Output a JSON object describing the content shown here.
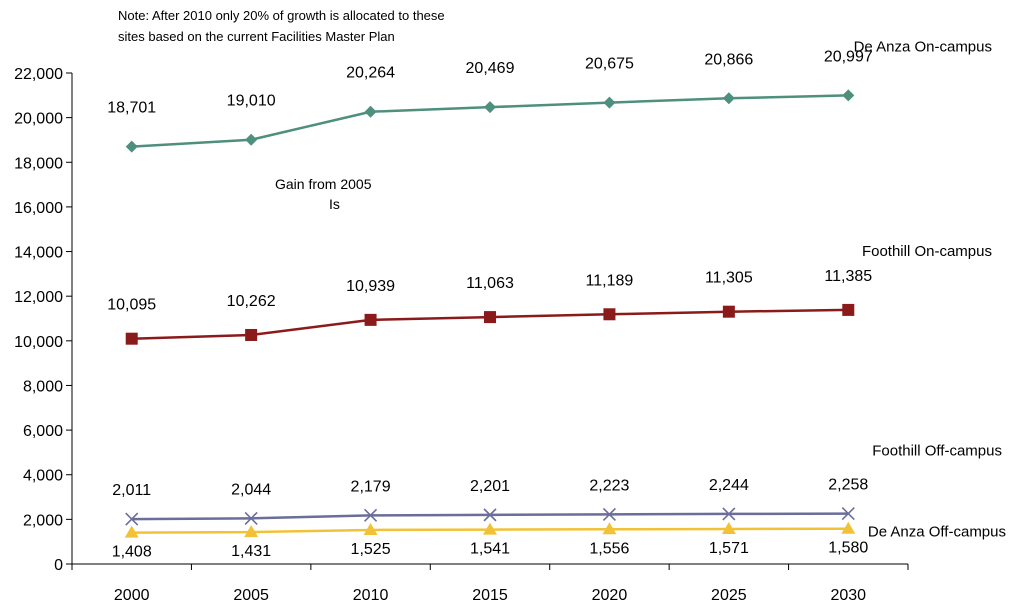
{
  "chart_data": {
    "type": "line",
    "x": [
      "2000",
      "2005",
      "2010",
      "2015",
      "2020",
      "2025",
      "2030"
    ],
    "ylim": [
      0,
      22000
    ],
    "yticks": [
      0,
      2000,
      4000,
      6000,
      8000,
      10000,
      12000,
      14000,
      16000,
      18000,
      20000,
      22000
    ],
    "ytick_labels": [
      "0",
      "2,000",
      "4,000",
      "6,000",
      "8,000",
      "10,000",
      "12,000",
      "14,000",
      "16,000",
      "18,000",
      "20,000",
      "22,000"
    ],
    "grid": false,
    "note_lines": [
      "Note: After 2010 only 20% of growth is allocated to these",
      "sites based on the current Facilities Master Plan"
    ],
    "annotation_lines": [
      "Gain from 2005",
      "Is"
    ],
    "series": [
      {
        "name": "De Anza On-campus",
        "color": "#4E8F7D",
        "marker": "diamond",
        "values": [
          18701,
          19010,
          20264,
          20469,
          20675,
          20866,
          20997
        ],
        "labels": [
          "18,701",
          "19,010",
          "20,264",
          "20,469",
          "20,675",
          "20,866",
          "20,997"
        ]
      },
      {
        "name": "Foothill On-campus",
        "color": "#8B1A1A",
        "marker": "square",
        "values": [
          10095,
          10262,
          10939,
          11063,
          11189,
          11305,
          11385
        ],
        "labels": [
          "10,095",
          "10,262",
          "10,939",
          "11,063",
          "11,189",
          "11,305",
          "11,385"
        ]
      },
      {
        "name": "Foothill Off-campus",
        "color": "#6A6E99",
        "marker": "x",
        "values": [
          2011,
          2044,
          2179,
          2201,
          2223,
          2244,
          2258
        ],
        "labels": [
          "2,011",
          "2,044",
          "2,179",
          "2,201",
          "2,223",
          "2,244",
          "2,258"
        ]
      },
      {
        "name": "De Anza Off-campus",
        "color": "#F2C236",
        "marker": "triangle",
        "values": [
          1408,
          1431,
          1525,
          1541,
          1556,
          1571,
          1580
        ],
        "labels": [
          "1,408",
          "1,431",
          "1,525",
          "1,541",
          "1,556",
          "1,571",
          "1,580"
        ]
      }
    ]
  }
}
